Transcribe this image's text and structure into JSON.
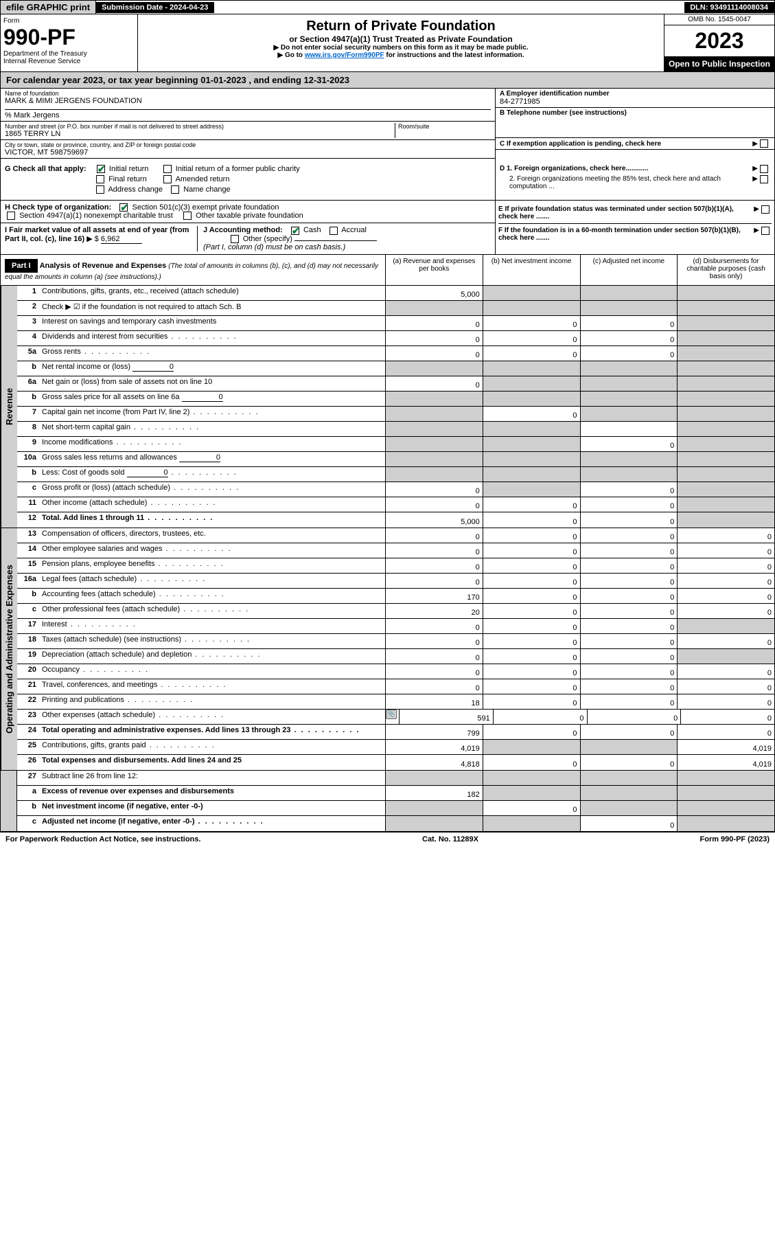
{
  "top": {
    "efile": "efile GRAPHIC print",
    "sub_label": "Submission Date - 2024-04-23",
    "dln": "DLN: 93491114008034"
  },
  "header": {
    "form_label": "Form",
    "form_number": "990-PF",
    "dept1": "Department of the Treasury",
    "dept2": "Internal Revenue Service",
    "title": "Return of Private Foundation",
    "subtitle": "or Section 4947(a)(1) Trust Treated as Private Foundation",
    "instr1": "▶ Do not enter social security numbers on this form as it may be made public.",
    "instr2_pre": "▶ Go to ",
    "instr2_link": "www.irs.gov/Form990PF",
    "instr2_post": " for instructions and the latest information.",
    "omb": "OMB No. 1545-0047",
    "year": "2023",
    "open": "Open to Public Inspection"
  },
  "cal_year": "For calendar year 2023, or tax year beginning 01-01-2023                          , and ending 12-31-2023",
  "info": {
    "name_label": "Name of foundation",
    "name": "MARK & MIMI JERGENS FOUNDATION",
    "care_of": "% Mark Jergens",
    "addr_label": "Number and street (or P.O. box number if mail is not delivered to street address)",
    "addr": "1865 TERRY LN",
    "room_label": "Room/suite",
    "city_label": "City or town, state or province, country, and ZIP or foreign postal code",
    "city": "VICTOR, MT  598759697",
    "ein_label": "A Employer identification number",
    "ein": "84-2771985",
    "tel_label": "B Telephone number (see instructions)",
    "c_label": "C If exemption application is pending, check here",
    "d1": "D 1. Foreign organizations, check here............",
    "d2": "2. Foreign organizations meeting the 85% test, check here and attach computation ...",
    "e": "E  If private foundation status was terminated under section 507(b)(1)(A), check here .......",
    "f": "F  If the foundation is in a 60-month termination under section 507(b)(1)(B), check here .......",
    "g_label": "G Check all that apply:",
    "g_initial": "Initial return",
    "g_initial_former": "Initial return of a former public charity",
    "g_final": "Final return",
    "g_amended": "Amended return",
    "g_address": "Address change",
    "g_name": "Name change",
    "h_label": "H Check type of organization:",
    "h_501c3": "Section 501(c)(3) exempt private foundation",
    "h_4947": "Section 4947(a)(1) nonexempt charitable trust",
    "h_other": "Other taxable private foundation",
    "i_label": "I Fair market value of all assets at end of year (from Part II, col. (c), line 16)",
    "i_arrow": "▶ $",
    "i_value": "6,962",
    "j_label": "J Accounting method:",
    "j_cash": "Cash",
    "j_accrual": "Accrual",
    "j_other": "Other (specify)",
    "j_note": "(Part I, column (d) must be on cash basis.)"
  },
  "part1": {
    "label": "Part I",
    "title": "Analysis of Revenue and Expenses",
    "title_note": "(The total of amounts in columns (b), (c), and (d) may not necessarily equal the amounts in column (a) (see instructions).)",
    "col_a": "(a)   Revenue and expenses per books",
    "col_b": "(b)   Net investment income",
    "col_c": "(c)   Adjusted net income",
    "col_d": "(d)   Disbursements for charitable purposes (cash basis only)"
  },
  "side_labels": {
    "revenue": "Revenue",
    "expenses": "Operating and Administrative Expenses"
  },
  "rows": [
    {
      "n": "1",
      "d": "Contributions, gifts, grants, etc., received (attach schedule)",
      "a": "5,000",
      "b": "shaded",
      "c": "shaded",
      "dd": "shaded"
    },
    {
      "n": "2",
      "d": "Check ▶ ☑ if the foundation is not required to attach Sch. B",
      "a": "shaded",
      "b": "shaded",
      "c": "shaded",
      "dd": "shaded",
      "bold_not": true
    },
    {
      "n": "3",
      "d": "Interest on savings and temporary cash investments",
      "a": "0",
      "b": "0",
      "c": "0",
      "dd": "shaded"
    },
    {
      "n": "4",
      "d": "Dividends and interest from securities",
      "a": "0",
      "b": "0",
      "c": "0",
      "dd": "shaded",
      "dots": true
    },
    {
      "n": "5a",
      "d": "Gross rents",
      "a": "0",
      "b": "0",
      "c": "0",
      "dd": "shaded",
      "dots": true
    },
    {
      "n": "b",
      "d": "Net rental income or (loss)",
      "inline": "0",
      "a": "shaded",
      "b": "shaded",
      "c": "shaded",
      "dd": "shaded"
    },
    {
      "n": "6a",
      "d": "Net gain or (loss) from sale of assets not on line 10",
      "a": "0",
      "b": "shaded",
      "c": "shaded",
      "dd": "shaded"
    },
    {
      "n": "b",
      "d": "Gross sales price for all assets on line 6a",
      "inline": "0",
      "a": "shaded",
      "b": "shaded",
      "c": "shaded",
      "dd": "shaded"
    },
    {
      "n": "7",
      "d": "Capital gain net income (from Part IV, line 2)",
      "a": "shaded",
      "b": "0",
      "c": "shaded",
      "dd": "shaded",
      "dots": true
    },
    {
      "n": "8",
      "d": "Net short-term capital gain",
      "a": "shaded",
      "b": "shaded",
      "c": "",
      "dd": "shaded",
      "dots": true
    },
    {
      "n": "9",
      "d": "Income modifications",
      "a": "shaded",
      "b": "shaded",
      "c": "0",
      "dd": "shaded",
      "dots": true
    },
    {
      "n": "10a",
      "d": "Gross sales less returns and allowances",
      "inline": "0",
      "a": "shaded",
      "b": "shaded",
      "c": "shaded",
      "dd": "shaded"
    },
    {
      "n": "b",
      "d": "Less: Cost of goods sold",
      "inline": "0",
      "a": "shaded",
      "b": "shaded",
      "c": "shaded",
      "dd": "shaded",
      "dots": true
    },
    {
      "n": "c",
      "d": "Gross profit or (loss) (attach schedule)",
      "a": "0",
      "b": "shaded",
      "c": "0",
      "dd": "shaded",
      "dots": true
    },
    {
      "n": "11",
      "d": "Other income (attach schedule)",
      "a": "0",
      "b": "0",
      "c": "0",
      "dd": "shaded",
      "dots": true
    },
    {
      "n": "12",
      "d": "Total. Add lines 1 through 11",
      "a": "5,000",
      "b": "0",
      "c": "0",
      "dd": "shaded",
      "bold": true,
      "dots": true
    }
  ],
  "exp_rows": [
    {
      "n": "13",
      "d": "Compensation of officers, directors, trustees, etc.",
      "a": "0",
      "b": "0",
      "c": "0",
      "dd": "0"
    },
    {
      "n": "14",
      "d": "Other employee salaries and wages",
      "a": "0",
      "b": "0",
      "c": "0",
      "dd": "0",
      "dots": true
    },
    {
      "n": "15",
      "d": "Pension plans, employee benefits",
      "a": "0",
      "b": "0",
      "c": "0",
      "dd": "0",
      "dots": true
    },
    {
      "n": "16a",
      "d": "Legal fees (attach schedule)",
      "a": "0",
      "b": "0",
      "c": "0",
      "dd": "0",
      "dots": true
    },
    {
      "n": "b",
      "d": "Accounting fees (attach schedule)",
      "a": "170",
      "b": "0",
      "c": "0",
      "dd": "0",
      "dots": true
    },
    {
      "n": "c",
      "d": "Other professional fees (attach schedule)",
      "a": "20",
      "b": "0",
      "c": "0",
      "dd": "0",
      "dots": true
    },
    {
      "n": "17",
      "d": "Interest",
      "a": "0",
      "b": "0",
      "c": "0",
      "dd": "shaded",
      "dots": true
    },
    {
      "n": "18",
      "d": "Taxes (attach schedule) (see instructions)",
      "a": "0",
      "b": "0",
      "c": "0",
      "dd": "0",
      "dots": true
    },
    {
      "n": "19",
      "d": "Depreciation (attach schedule) and depletion",
      "a": "0",
      "b": "0",
      "c": "0",
      "dd": "shaded",
      "dots": true
    },
    {
      "n": "20",
      "d": "Occupancy",
      "a": "0",
      "b": "0",
      "c": "0",
      "dd": "0",
      "dots": true
    },
    {
      "n": "21",
      "d": "Travel, conferences, and meetings",
      "a": "0",
      "b": "0",
      "c": "0",
      "dd": "0",
      "dots": true
    },
    {
      "n": "22",
      "d": "Printing and publications",
      "a": "18",
      "b": "0",
      "c": "0",
      "dd": "0",
      "dots": true
    },
    {
      "n": "23",
      "d": "Other expenses (attach schedule)",
      "a": "591",
      "b": "0",
      "c": "0",
      "dd": "0",
      "dots": true,
      "icon": true
    },
    {
      "n": "24",
      "d": "Total operating and administrative expenses. Add lines 13 through 23",
      "a": "799",
      "b": "0",
      "c": "0",
      "dd": "0",
      "bold": true,
      "dots": true
    },
    {
      "n": "25",
      "d": "Contributions, gifts, grants paid",
      "a": "4,019",
      "b": "shaded",
      "c": "shaded",
      "dd": "4,019",
      "dots": true
    },
    {
      "n": "26",
      "d": "Total expenses and disbursements. Add lines 24 and 25",
      "a": "4,818",
      "b": "0",
      "c": "0",
      "dd": "4,019",
      "bold": true
    }
  ],
  "rows27": [
    {
      "n": "27",
      "d": "Subtract line 26 from line 12:",
      "a": "shaded",
      "b": "shaded",
      "c": "shaded",
      "dd": "shaded"
    },
    {
      "n": "a",
      "d": "Excess of revenue over expenses and disbursements",
      "a": "182",
      "b": "shaded",
      "c": "shaded",
      "dd": "shaded",
      "bold": true
    },
    {
      "n": "b",
      "d": "Net investment income (if negative, enter -0-)",
      "a": "shaded",
      "b": "0",
      "c": "shaded",
      "dd": "shaded",
      "bold": true
    },
    {
      "n": "c",
      "d": "Adjusted net income (if negative, enter -0-)",
      "a": "shaded",
      "b": "shaded",
      "c": "0",
      "dd": "shaded",
      "bold": true,
      "dots": true
    }
  ],
  "footer": {
    "left": "For Paperwork Reduction Act Notice, see instructions.",
    "center": "Cat. No. 11289X",
    "right": "Form 990-PF (2023)"
  }
}
